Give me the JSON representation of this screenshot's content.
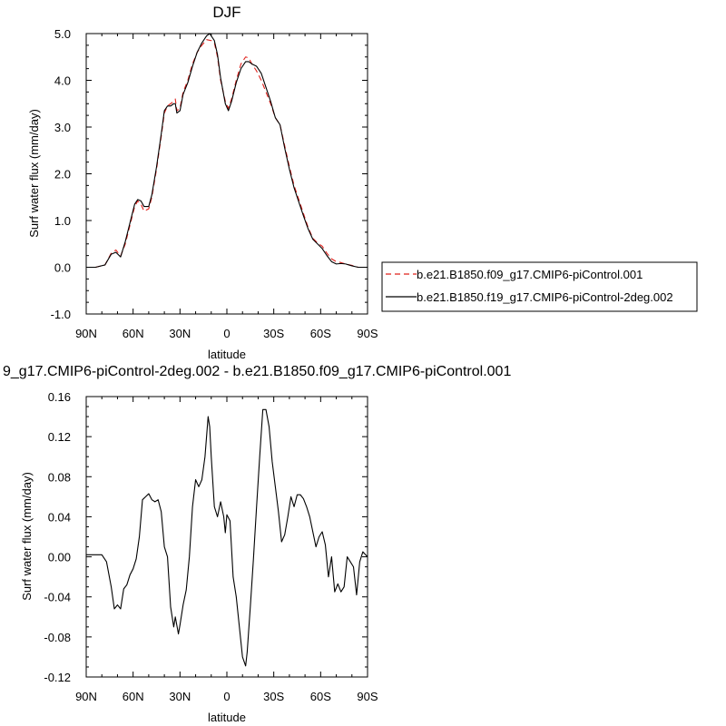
{
  "chart_data": [
    {
      "type": "line",
      "title": "DJF",
      "xlabel": "latitude",
      "ylabel": "Surf water flux (mm/day)",
      "xlim": [
        -90,
        90
      ],
      "ylim": [
        -1.0,
        5.0
      ],
      "x_ticks": [
        {
          "value": -90,
          "label": "90N"
        },
        {
          "value": -60,
          "label": "60N"
        },
        {
          "value": -30,
          "label": "30N"
        },
        {
          "value": 0,
          "label": "0"
        },
        {
          "value": 30,
          "label": "30S"
        },
        {
          "value": 60,
          "label": "60S"
        },
        {
          "value": 90,
          "label": "90S"
        }
      ],
      "y_ticks": [
        {
          "value": -1.0,
          "label": "-1.0"
        },
        {
          "value": 0.0,
          "label": "0.0"
        },
        {
          "value": 1.0,
          "label": "1.0"
        },
        {
          "value": 2.0,
          "label": "2.0"
        },
        {
          "value": 3.0,
          "label": "3.0"
        },
        {
          "value": 4.0,
          "label": "4.0"
        },
        {
          "value": 5.0,
          "label": "5.0"
        }
      ],
      "legend_position": "right",
      "series": [
        {
          "name": "b.e21.B1850.f09_g17.CMIP6-piControl.001",
          "color": "#e0201b",
          "dash": "dashed",
          "points": [
            [
              -90,
              0.0
            ],
            [
              -84,
              0.0
            ],
            [
              -78,
              0.05
            ],
            [
              -74,
              0.3
            ],
            [
              -71,
              0.37
            ],
            [
              -68,
              0.24
            ],
            [
              -65,
              0.5
            ],
            [
              -62,
              0.9
            ],
            [
              -59,
              1.3
            ],
            [
              -57,
              1.42
            ],
            [
              -55,
              1.35
            ],
            [
              -53,
              1.2
            ],
            [
              -50,
              1.25
            ],
            [
              -48,
              1.5
            ],
            [
              -45,
              2.1
            ],
            [
              -42,
              2.8
            ],
            [
              -40,
              3.3
            ],
            [
              -38,
              3.45
            ],
            [
              -36,
              3.5
            ],
            [
              -34,
              3.55
            ],
            [
              -33,
              3.6
            ],
            [
              -32,
              3.35
            ],
            [
              -30,
              3.4
            ],
            [
              -28,
              3.75
            ],
            [
              -25,
              4.0
            ],
            [
              -22,
              4.35
            ],
            [
              -19,
              4.6
            ],
            [
              -16,
              4.75
            ],
            [
              -13,
              4.87
            ],
            [
              -10,
              4.85
            ],
            [
              -8,
              4.8
            ],
            [
              -6,
              4.5
            ],
            [
              -4,
              4.0
            ],
            [
              -1,
              3.55
            ],
            [
              1,
              3.4
            ],
            [
              3,
              3.6
            ],
            [
              6,
              4.0
            ],
            [
              9,
              4.35
            ],
            [
              12,
              4.5
            ],
            [
              14,
              4.48
            ],
            [
              16,
              4.35
            ],
            [
              19,
              4.2
            ],
            [
              22,
              4.0
            ],
            [
              25,
              3.75
            ],
            [
              28,
              3.5
            ],
            [
              31,
              3.2
            ],
            [
              34,
              3.05
            ],
            [
              37,
              2.6
            ],
            [
              40,
              2.15
            ],
            [
              43,
              1.75
            ],
            [
              46,
              1.45
            ],
            [
              49,
              1.15
            ],
            [
              52,
              0.85
            ],
            [
              55,
              0.62
            ],
            [
              58,
              0.52
            ],
            [
              61,
              0.45
            ],
            [
              64,
              0.3
            ],
            [
              67,
              0.18
            ],
            [
              70,
              0.12
            ],
            [
              73,
              0.1
            ],
            [
              76,
              0.07
            ],
            [
              80,
              0.04
            ],
            [
              84,
              0.0
            ],
            [
              90,
              0.0
            ]
          ]
        },
        {
          "name": "b.e21.B1850.f19_g17.CMIP6-piControl-2deg.002",
          "color": "#000000",
          "dash": "solid",
          "points": [
            [
              -90,
              0.0
            ],
            [
              -84,
              0.0
            ],
            [
              -78,
              0.05
            ],
            [
              -74,
              0.28
            ],
            [
              -71,
              0.32
            ],
            [
              -68,
              0.22
            ],
            [
              -65,
              0.55
            ],
            [
              -62,
              0.95
            ],
            [
              -59,
              1.35
            ],
            [
              -57,
              1.45
            ],
            [
              -55,
              1.42
            ],
            [
              -53,
              1.3
            ],
            [
              -50,
              1.3
            ],
            [
              -48,
              1.55
            ],
            [
              -45,
              2.15
            ],
            [
              -42,
              2.85
            ],
            [
              -40,
              3.35
            ],
            [
              -38,
              3.45
            ],
            [
              -36,
              3.45
            ],
            [
              -34,
              3.5
            ],
            [
              -33,
              3.5
            ],
            [
              -32,
              3.3
            ],
            [
              -30,
              3.35
            ],
            [
              -28,
              3.7
            ],
            [
              -25,
              3.95
            ],
            [
              -22,
              4.3
            ],
            [
              -19,
              4.6
            ],
            [
              -16,
              4.8
            ],
            [
              -13,
              4.95
            ],
            [
              -11,
              5.0
            ],
            [
              -8,
              4.85
            ],
            [
              -6,
              4.55
            ],
            [
              -4,
              4.05
            ],
            [
              -1,
              3.5
            ],
            [
              1,
              3.35
            ],
            [
              3,
              3.55
            ],
            [
              6,
              3.95
            ],
            [
              9,
              4.25
            ],
            [
              12,
              4.4
            ],
            [
              14,
              4.4
            ],
            [
              16,
              4.35
            ],
            [
              19,
              4.3
            ],
            [
              22,
              4.15
            ],
            [
              25,
              3.85
            ],
            [
              28,
              3.55
            ],
            [
              31,
              3.2
            ],
            [
              34,
              3.05
            ],
            [
              37,
              2.55
            ],
            [
              40,
              2.1
            ],
            [
              43,
              1.7
            ],
            [
              46,
              1.4
            ],
            [
              49,
              1.1
            ],
            [
              52,
              0.82
            ],
            [
              55,
              0.6
            ],
            [
              58,
              0.5
            ],
            [
              61,
              0.4
            ],
            [
              64,
              0.25
            ],
            [
              67,
              0.12
            ],
            [
              70,
              0.07
            ],
            [
              73,
              0.08
            ],
            [
              76,
              0.07
            ],
            [
              80,
              0.03
            ],
            [
              84,
              0.0
            ],
            [
              90,
              0.0
            ]
          ]
        }
      ]
    },
    {
      "type": "line",
      "title": "9_g17.CMIP6-piControl-2deg.002 - b.e21.B1850.f09_g17.CMIP6-piControl.001",
      "xlabel": "latitude",
      "ylabel": "Surf water flux (mm/day)",
      "xlim": [
        -90,
        90
      ],
      "ylim": [
        -0.12,
        0.16
      ],
      "x_ticks": [
        {
          "value": -90,
          "label": "90N"
        },
        {
          "value": -60,
          "label": "60N"
        },
        {
          "value": -30,
          "label": "30N"
        },
        {
          "value": 0,
          "label": "0"
        },
        {
          "value": 30,
          "label": "30S"
        },
        {
          "value": 60,
          "label": "60S"
        },
        {
          "value": 90,
          "label": "90S"
        }
      ],
      "y_ticks": [
        {
          "value": -0.12,
          "label": "-0.12"
        },
        {
          "value": -0.08,
          "label": "-0.08"
        },
        {
          "value": -0.04,
          "label": "-0.04"
        },
        {
          "value": 0.0,
          "label": "0.00"
        },
        {
          "value": 0.04,
          "label": "0.04"
        },
        {
          "value": 0.08,
          "label": "0.08"
        },
        {
          "value": 0.12,
          "label": "0.12"
        },
        {
          "value": 0.16,
          "label": "0.16"
        }
      ],
      "series": [
        {
          "color": "#000000",
          "dash": "solid",
          "points": [
            [
              -90,
              0.002
            ],
            [
              -84,
              0.002
            ],
            [
              -80,
              0.002
            ],
            [
              -77,
              -0.005
            ],
            [
              -74,
              -0.03
            ],
            [
              -72,
              -0.052
            ],
            [
              -70,
              -0.048
            ],
            [
              -68,
              -0.052
            ],
            [
              -66,
              -0.032
            ],
            [
              -64,
              -0.028
            ],
            [
              -62,
              -0.018
            ],
            [
              -60,
              -0.012
            ],
            [
              -58,
              -0.002
            ],
            [
              -56,
              0.02
            ],
            [
              -54,
              0.057
            ],
            [
              -52,
              0.06
            ],
            [
              -50,
              0.063
            ],
            [
              -48,
              0.057
            ],
            [
              -46,
              0.055
            ],
            [
              -44,
              0.057
            ],
            [
              -42,
              0.045
            ],
            [
              -40,
              0.01
            ],
            [
              -38,
              0.0
            ],
            [
              -36,
              -0.05
            ],
            [
              -34,
              -0.07
            ],
            [
              -33,
              -0.06
            ],
            [
              -31,
              -0.077
            ],
            [
              -30,
              -0.068
            ],
            [
              -28,
              -0.048
            ],
            [
              -26,
              -0.033
            ],
            [
              -24,
              0.0
            ],
            [
              -22,
              0.05
            ],
            [
              -20,
              0.077
            ],
            [
              -18,
              0.07
            ],
            [
              -16,
              0.077
            ],
            [
              -14,
              0.1
            ],
            [
              -12,
              0.14
            ],
            [
              -11,
              0.13
            ],
            [
              -10,
              0.1
            ],
            [
              -8,
              0.05
            ],
            [
              -6,
              0.04
            ],
            [
              -4,
              0.055
            ],
            [
              -2,
              0.04
            ],
            [
              -1,
              0.024
            ],
            [
              0,
              0.042
            ],
            [
              2,
              0.036
            ],
            [
              4,
              -0.02
            ],
            [
              6,
              -0.04
            ],
            [
              8,
              -0.07
            ],
            [
              10,
              -0.1
            ],
            [
              12,
              -0.109
            ],
            [
              13,
              -0.095
            ],
            [
              15,
              -0.05
            ],
            [
              17,
              -0.002
            ],
            [
              19,
              0.05
            ],
            [
              21,
              0.1
            ],
            [
              23,
              0.147
            ],
            [
              25,
              0.147
            ],
            [
              27,
              0.13
            ],
            [
              29,
              0.095
            ],
            [
              31,
              0.07
            ],
            [
              33,
              0.045
            ],
            [
              35,
              0.015
            ],
            [
              37,
              0.022
            ],
            [
              39,
              0.04
            ],
            [
              41,
              0.06
            ],
            [
              43,
              0.05
            ],
            [
              45,
              0.062
            ],
            [
              47,
              0.062
            ],
            [
              49,
              0.058
            ],
            [
              51,
              0.05
            ],
            [
              53,
              0.04
            ],
            [
              55,
              0.025
            ],
            [
              57,
              0.01
            ],
            [
              59,
              0.02
            ],
            [
              61,
              0.025
            ],
            [
              63,
              0.012
            ],
            [
              65,
              -0.02
            ],
            [
              67,
              0.0
            ],
            [
              69,
              -0.035
            ],
            [
              71,
              -0.027
            ],
            [
              73,
              -0.035
            ],
            [
              75,
              -0.03
            ],
            [
              77,
              0.0
            ],
            [
              79,
              -0.005
            ],
            [
              81,
              -0.01
            ],
            [
              83,
              -0.038
            ],
            [
              85,
              -0.005
            ],
            [
              87,
              0.005
            ],
            [
              90,
              0.0
            ]
          ]
        }
      ]
    }
  ]
}
